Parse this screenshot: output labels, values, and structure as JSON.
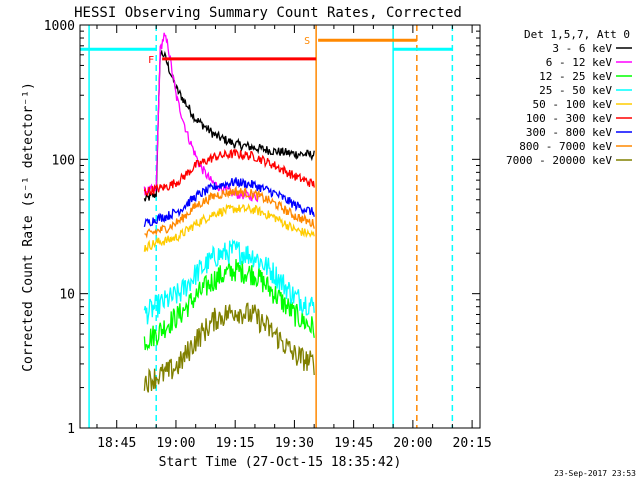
{
  "chart_data": {
    "type": "line",
    "title": "HESSI Observing Summary Count Rates, Corrected",
    "xlabel": "Start Time (27-Oct-15 18:35:42)",
    "ylabel": "Corrected Count Rate (s⁻¹ detector⁻¹)",
    "footer": "23-Sep-2017 23:53",
    "y_scale": "log",
    "ylim": [
      1,
      1000
    ],
    "y_ticks": [
      {
        "value": 1,
        "label": "1"
      },
      {
        "value": 10,
        "label": "10"
      },
      {
        "value": 100,
        "label": "100"
      },
      {
        "value": 1000,
        "label": "1000"
      }
    ],
    "xlim": [
      "18:35:42",
      "20:17:00"
    ],
    "x_ticks": [
      {
        "value": "18:45",
        "label": "18:45"
      },
      {
        "value": "19:00",
        "label": "19:00"
      },
      {
        "value": "19:15",
        "label": "19:15"
      },
      {
        "value": "19:30",
        "label": "19:30"
      },
      {
        "value": "19:45",
        "label": "19:45"
      },
      {
        "value": "20:00",
        "label": "20:00"
      },
      {
        "value": "20:15",
        "label": "20:15"
      }
    ],
    "legend_title": "Det 1,5,7, Att 0",
    "legend_position": "right",
    "flag_bars": [
      {
        "label": "F",
        "color": "#ff0000",
        "start": "18:56:30",
        "end": "19:35:30",
        "level": 560
      },
      {
        "label": "S",
        "color": "#ff8800",
        "start": "19:36:00",
        "end": "20:01:00",
        "level": 770
      }
    ],
    "night_bars": [
      {
        "color": "#00ffff",
        "start": "18:35:42",
        "end": "18:55:00",
        "level": 660
      },
      {
        "color": "#00ffff",
        "start": "19:55:00",
        "end": "20:10:00",
        "level": 660
      }
    ],
    "vertical_markers": [
      {
        "time": "18:38:00",
        "color": "#00ffff",
        "style": "solid"
      },
      {
        "time": "18:55:00",
        "color": "#00ffff",
        "style": "dashed"
      },
      {
        "time": "19:35:30",
        "color": "#ff8800",
        "style": "solid"
      },
      {
        "time": "19:55:00",
        "color": "#00ffff",
        "style": "solid"
      },
      {
        "time": "20:01:00",
        "color": "#ff8800",
        "style": "dashed"
      },
      {
        "time": "20:10:00",
        "color": "#00ffff",
        "style": "dashed"
      }
    ],
    "data_start": "18:52:00",
    "data_end": "19:35:30",
    "series": [
      {
        "name": "3 - 6 keV",
        "color": "#000000",
        "points": [
          [
            "18:52:00",
            50
          ],
          [
            "18:55:00",
            55
          ],
          [
            "18:56:00",
            620
          ],
          [
            "18:57:00",
            600
          ],
          [
            "19:00:00",
            340
          ],
          [
            "19:05:00",
            200
          ],
          [
            "19:10:00",
            150
          ],
          [
            "19:15:00",
            130
          ],
          [
            "19:20:00",
            122
          ],
          [
            "19:25:00",
            115
          ],
          [
            "19:30:00",
            110
          ],
          [
            "19:35:00",
            108
          ]
        ]
      },
      {
        "name": "6 - 12 keV",
        "color": "#ff00ff",
        "points": [
          [
            "18:52:00",
            58
          ],
          [
            "18:55:00",
            60
          ],
          [
            "18:56:00",
            650
          ],
          [
            "18:57:00",
            830
          ],
          [
            "18:58:00",
            700
          ],
          [
            "19:00:00",
            300
          ],
          [
            "19:03:00",
            150
          ],
          [
            "19:06:00",
            90
          ],
          [
            "19:09:00",
            68
          ],
          [
            "19:12:00",
            60
          ],
          [
            "19:15:00",
            55
          ],
          [
            "19:18:00",
            54
          ],
          [
            "19:21:00",
            52
          ]
        ]
      },
      {
        "name": "12 - 25 keV",
        "color": "#00ff00",
        "points": [
          [
            "18:52:00",
            4.5
          ],
          [
            "18:55:00",
            5
          ],
          [
            "18:58:00",
            6
          ],
          [
            "19:01:00",
            7
          ],
          [
            "19:05:00",
            9.5
          ],
          [
            "19:10:00",
            13
          ],
          [
            "19:15:00",
            15
          ],
          [
            "19:20:00",
            14
          ],
          [
            "19:25:00",
            10
          ],
          [
            "19:30:00",
            7
          ],
          [
            "19:35:00",
            5.5
          ]
        ]
      },
      {
        "name": "25 - 50 keV",
        "color": "#00ffff",
        "points": [
          [
            "18:52:00",
            7
          ],
          [
            "18:55:00",
            8
          ],
          [
            "18:58:00",
            9
          ],
          [
            "19:01:00",
            10
          ],
          [
            "19:05:00",
            14
          ],
          [
            "19:10:00",
            19
          ],
          [
            "19:15:00",
            21
          ],
          [
            "19:20:00",
            19
          ],
          [
            "19:25:00",
            14
          ],
          [
            "19:30:00",
            9.5
          ],
          [
            "19:35:00",
            8
          ]
        ]
      },
      {
        "name": "50 - 100 keV",
        "color": "#ffcc00",
        "points": [
          [
            "18:52:00",
            22
          ],
          [
            "18:55:00",
            24
          ],
          [
            "18:58:00",
            25
          ],
          [
            "19:01:00",
            27
          ],
          [
            "19:05:00",
            33
          ],
          [
            "19:10:00",
            40
          ],
          [
            "19:15:00",
            43
          ],
          [
            "19:20:00",
            42
          ],
          [
            "19:25:00",
            37
          ],
          [
            "19:30:00",
            30
          ],
          [
            "19:35:00",
            27
          ]
        ]
      },
      {
        "name": "100 - 300 keV",
        "color": "#ff0000",
        "points": [
          [
            "18:52:00",
            57
          ],
          [
            "18:55:00",
            60
          ],
          [
            "18:58:00",
            63
          ],
          [
            "19:01:00",
            70
          ],
          [
            "19:05:00",
            90
          ],
          [
            "19:10:00",
            105
          ],
          [
            "19:15:00",
            110
          ],
          [
            "19:20:00",
            105
          ],
          [
            "19:25:00",
            90
          ],
          [
            "19:30:00",
            75
          ],
          [
            "19:35:00",
            65
          ]
        ]
      },
      {
        "name": "300 - 800 keV",
        "color": "#0000ff",
        "points": [
          [
            "18:52:00",
            33
          ],
          [
            "18:55:00",
            36
          ],
          [
            "18:58:00",
            38
          ],
          [
            "19:01:00",
            42
          ],
          [
            "19:05:00",
            53
          ],
          [
            "19:10:00",
            63
          ],
          [
            "19:15:00",
            68
          ],
          [
            "19:20:00",
            64
          ],
          [
            "19:25:00",
            56
          ],
          [
            "19:30:00",
            46
          ],
          [
            "19:35:00",
            40
          ]
        ]
      },
      {
        "name": "800 - 7000 keV",
        "color": "#ff8800",
        "points": [
          [
            "18:52:00",
            27
          ],
          [
            "18:55:00",
            29
          ],
          [
            "18:58:00",
            31
          ],
          [
            "19:01:00",
            35
          ],
          [
            "19:05:00",
            45
          ],
          [
            "19:10:00",
            54
          ],
          [
            "19:15:00",
            58
          ],
          [
            "19:20:00",
            55
          ],
          [
            "19:25:00",
            47
          ],
          [
            "19:30:00",
            38
          ],
          [
            "19:35:00",
            33
          ]
        ]
      },
      {
        "name": "7000 - 20000 keV",
        "color": "#808000",
        "points": [
          [
            "18:52:00",
            2.2
          ],
          [
            "18:55:00",
            2.4
          ],
          [
            "18:58:00",
            2.6
          ],
          [
            "19:01:00",
            3
          ],
          [
            "19:05:00",
            4.5
          ],
          [
            "19:10:00",
            6.5
          ],
          [
            "19:15:00",
            7.5
          ],
          [
            "19:20:00",
            6.8
          ],
          [
            "19:25:00",
            5
          ],
          [
            "19:30:00",
            3.5
          ],
          [
            "19:35:00",
            3
          ]
        ]
      }
    ]
  }
}
